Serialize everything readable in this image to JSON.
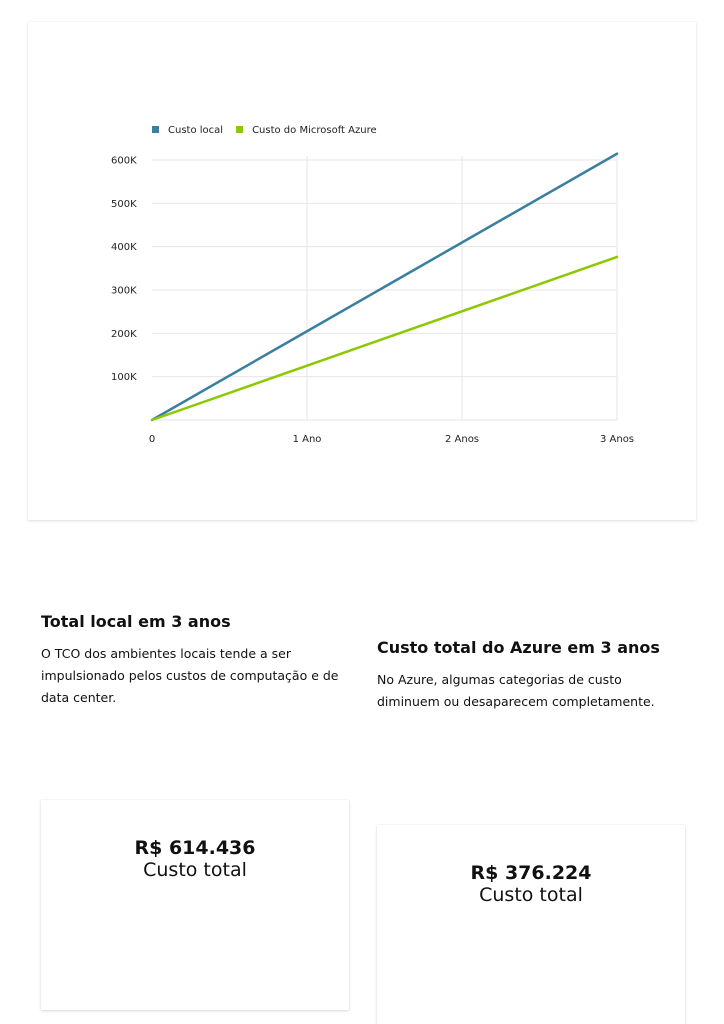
{
  "colors": {
    "local": "#3a7fa0",
    "azure": "#8cc800",
    "grid": "#e6e6e6"
  },
  "chart_data": {
    "type": "line",
    "x": [
      "0",
      "1 Ano",
      "2 Anos",
      "3 Anos"
    ],
    "series": [
      {
        "name": "Custo local",
        "values": [
          0,
          204812,
          409624,
          614436
        ]
      },
      {
        "name": "Custo do Microsoft Azure",
        "values": [
          0,
          125408,
          250816,
          376224
        ]
      }
    ],
    "yticks": [
      "100K",
      "200K",
      "300K",
      "400K",
      "500K",
      "600K"
    ],
    "ytick_values": [
      100000,
      200000,
      300000,
      400000,
      500000,
      600000
    ],
    "ylim": [
      0,
      600000
    ],
    "grid": true,
    "legend": "top-left"
  },
  "local": {
    "heading": "Total local em 3 anos",
    "description": "O TCO dos ambientes locais tende a ser impulsionado pelos custos de computação e de data center.",
    "amount": "R$ 614.436",
    "amount_label": "Custo total"
  },
  "azure": {
    "heading": "Custo total do Azure em 3 anos",
    "description": "No Azure, algumas categorias de custo diminuem ou desaparecem completamente.",
    "amount": "R$ 376.224",
    "amount_label": "Custo total"
  }
}
